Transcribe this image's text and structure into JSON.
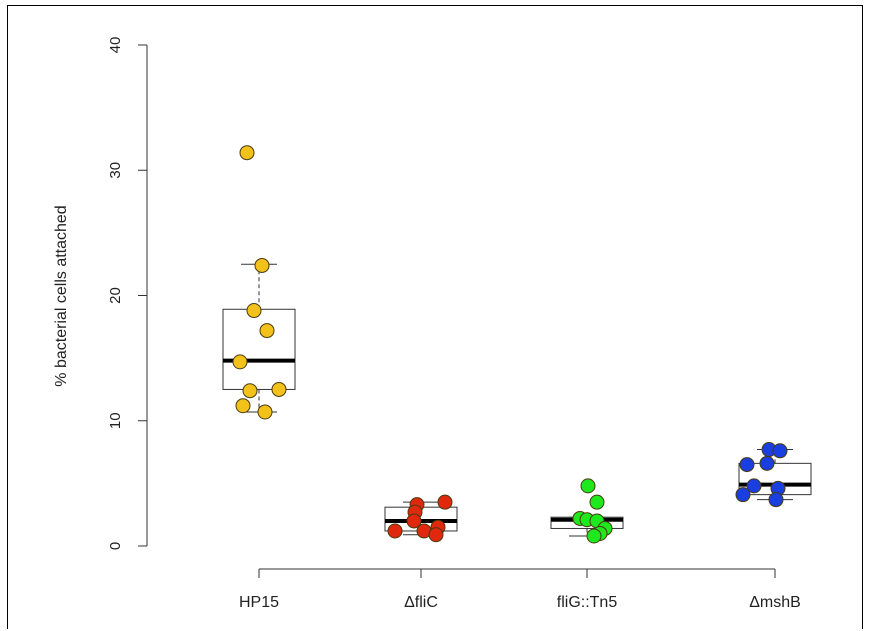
{
  "chart_data": {
    "type": "box+strip",
    "title": "",
    "xlabel": "",
    "ylabel": "% bacterial cells attached",
    "ylim": [
      0,
      40
    ],
    "yticks": [
      0,
      10,
      20,
      30,
      40
    ],
    "grid": false,
    "categories": [
      "HP15",
      "ΔfliC",
      "fliG::Tn5",
      "ΔmshB"
    ],
    "colors": [
      "#f2c21a",
      "#e0280e",
      "#1ee81e",
      "#1a3fe0"
    ],
    "boxes": [
      {
        "whisker_low": 10.7,
        "q1": 12.5,
        "median": 14.8,
        "q3": 18.9,
        "whisker_high": 22.5
      },
      {
        "whisker_low": 0.9,
        "q1": 1.2,
        "median": 2.0,
        "q3": 3.1,
        "whisker_high": 3.5
      },
      {
        "whisker_low": 0.8,
        "q1": 1.4,
        "median": 2.1,
        "q3": 2.3,
        "whisker_high": 2.3
      },
      {
        "whisker_low": 3.7,
        "q1": 4.1,
        "median": 4.9,
        "q3": 6.6,
        "whisker_high": 7.7
      }
    ],
    "points": [
      [
        31.4,
        22.4,
        18.8,
        17.2,
        14.7,
        12.5,
        12.4,
        11.2,
        10.7
      ],
      [
        3.5,
        3.3,
        2.7,
        2.0,
        1.5,
        1.2,
        1.2,
        0.9
      ],
      [
        4.8,
        3.5,
        2.2,
        2.1,
        2.0,
        1.4,
        1.0,
        0.8
      ],
      [
        7.7,
        7.6,
        6.6,
        6.5,
        4.8,
        4.6,
        4.1,
        3.7
      ]
    ]
  }
}
